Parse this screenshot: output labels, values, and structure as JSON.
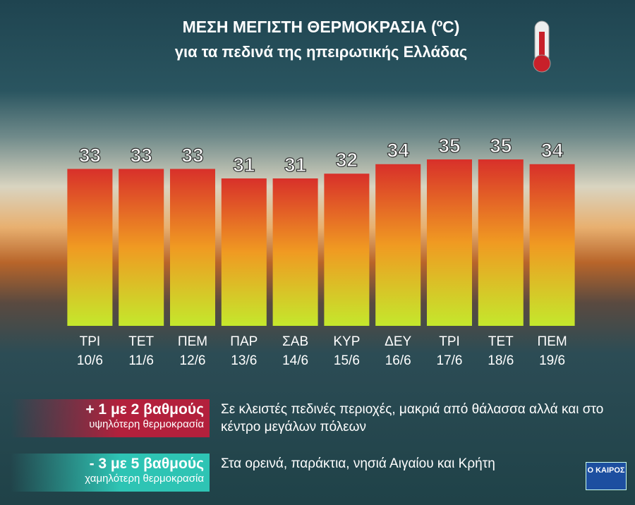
{
  "chart_data": {
    "type": "bar",
    "title": "ΜΕΣΗ ΜΕΓΙΣΤΗ ΘΕΡΜΟΚΡΑΣΙΑ (ºC)",
    "subtitle": "για τα πεδινά της ηπειρωτικής Ελλάδας",
    "categories": [
      [
        "ΤΡΙ",
        "10/6"
      ],
      [
        "ΤΕΤ",
        "11/6"
      ],
      [
        "ΠΕΜ",
        "12/6"
      ],
      [
        "ΠΑΡ",
        "13/6"
      ],
      [
        "ΣΑΒ",
        "14/6"
      ],
      [
        "ΚΥΡ",
        "15/6"
      ],
      [
        "ΔΕΥ",
        "16/6"
      ],
      [
        "ΤΡΙ",
        "17/6"
      ],
      [
        "ΤΕΤ",
        "18/6"
      ],
      [
        "ΠΕΜ",
        "19/6"
      ]
    ],
    "values": [
      33,
      33,
      33,
      31,
      31,
      32,
      34,
      35,
      35,
      34
    ],
    "bar_gradient": [
      "#d8302a",
      "#f09a22",
      "#c4e82c"
    ],
    "notes": [
      {
        "label": "+ 1 με 2 βαθμούς",
        "sublabel": "υψηλότερη θερμοκρασία",
        "text": "Σε κλειστές πεδινές περιοχές, μακριά από θάλασσα αλλά και στο κέντρο μεγάλων πόλεων",
        "color": "#b3203c"
      },
      {
        "label": "- 3 με 5 βαθμούς",
        "sublabel": "χαμηλότερη θερμοκρασία",
        "text": "Στα ορεινά, παράκτια, νησιά Αιγαίου και Κρήτη",
        "color": "#2ec4b4"
      }
    ],
    "logo": "Ο ΚΑΙΡΟΣ"
  }
}
